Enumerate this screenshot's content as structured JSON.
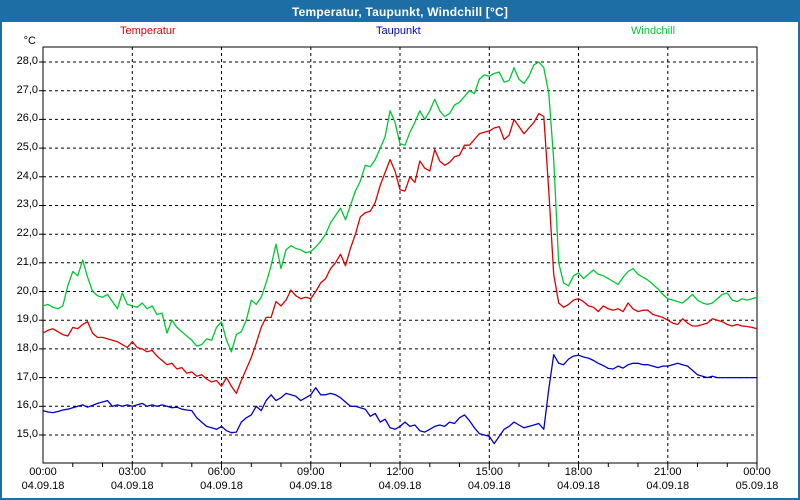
{
  "window": {
    "title": "Temperatur, Taupunkt, Windchill [°C]"
  },
  "colors": {
    "frame": "#1c6ea4",
    "titlebar_bg": "#1c6ea4",
    "titlebar_text": "#ffffff",
    "plot_background": "#ffffff",
    "plot_border": "#000000",
    "grid": "#000000",
    "temperatur": "#dd0000",
    "taupunkt": "#0000cc",
    "windchill": "#00c832"
  },
  "axes": {
    "y_unit_label": "°C",
    "y_ticks": [
      {
        "label": "28,0",
        "value": 28.0
      },
      {
        "label": "27,0",
        "value": 27.0
      },
      {
        "label": "26,0",
        "value": 26.0
      },
      {
        "label": "25,0",
        "value": 25.0
      },
      {
        "label": "24,0",
        "value": 24.0
      },
      {
        "label": "23,0",
        "value": 23.0
      },
      {
        "label": "22,0",
        "value": 22.0
      },
      {
        "label": "21,0",
        "value": 21.0
      },
      {
        "label": "20,0",
        "value": 20.0
      },
      {
        "label": "19,0",
        "value": 19.0
      },
      {
        "label": "18,0",
        "value": 18.0
      },
      {
        "label": "17,0",
        "value": 17.0
      },
      {
        "label": "16,0",
        "value": 16.0
      },
      {
        "label": "15,0",
        "value": 15.0
      }
    ],
    "x_ticks": [
      {
        "time": "00:00",
        "date": "04.09.18",
        "minutes": 0
      },
      {
        "time": "03:00",
        "date": "04.09.18",
        "minutes": 180
      },
      {
        "time": "06:00",
        "date": "04.09.18",
        "minutes": 360
      },
      {
        "time": "09:00",
        "date": "04.09.18",
        "minutes": 540
      },
      {
        "time": "12:00",
        "date": "04.09.18",
        "minutes": 720
      },
      {
        "time": "15:00",
        "date": "04.09.18",
        "minutes": 900
      },
      {
        "time": "18:00",
        "date": "04.09.18",
        "minutes": 1080
      },
      {
        "time": "21:00",
        "date": "04.09.18",
        "minutes": 1260
      },
      {
        "time": "00:00",
        "date": "05.09.18",
        "minutes": 1440
      }
    ]
  },
  "chart_data": {
    "type": "line",
    "title": "Temperatur, Taupunkt, Windchill [°C]",
    "xlabel": "",
    "ylabel": "°C",
    "ylim": [
      14.5,
      28.5
    ],
    "y_tick_step": 1.0,
    "x_range_minutes": [
      0,
      1440
    ],
    "x_tick_major_minutes": 180,
    "x_tick_minor_minutes": 60,
    "grid": "dashed",
    "legend_position": "top",
    "x_start_minutes": 0,
    "x_step_minutes": 10,
    "series": [
      {
        "name": "Temperatur",
        "color": "#dd0000",
        "values": [
          18.55,
          18.65,
          18.7,
          18.6,
          18.5,
          18.45,
          18.75,
          18.7,
          18.85,
          18.95,
          18.55,
          18.4,
          18.4,
          18.35,
          18.3,
          18.25,
          18.15,
          18.05,
          18.25,
          18.05,
          18.0,
          17.9,
          17.95,
          17.75,
          17.6,
          17.45,
          17.5,
          17.3,
          17.35,
          17.15,
          17.2,
          17.05,
          17.1,
          16.95,
          16.85,
          16.9,
          16.7,
          17.0,
          16.7,
          16.45,
          16.9,
          17.3,
          17.7,
          18.2,
          18.75,
          19.1,
          19.1,
          19.65,
          19.5,
          19.7,
          20.05,
          19.85,
          19.75,
          19.8,
          19.75,
          20.0,
          20.3,
          20.45,
          20.8,
          21.0,
          21.3,
          20.9,
          21.5,
          22.0,
          22.6,
          22.75,
          22.8,
          23.1,
          23.7,
          24.15,
          24.6,
          24.2,
          23.55,
          23.5,
          24.0,
          23.8,
          24.55,
          24.3,
          24.2,
          24.95,
          24.55,
          24.4,
          24.5,
          24.7,
          24.75,
          25.1,
          25.1,
          25.3,
          25.5,
          25.55,
          25.6,
          25.7,
          25.75,
          25.3,
          25.45,
          26.0,
          25.75,
          25.5,
          25.7,
          25.9,
          26.2,
          26.1,
          23.5,
          20.6,
          19.6,
          19.45,
          19.55,
          19.7,
          19.75,
          19.65,
          19.5,
          19.45,
          19.3,
          19.5,
          19.4,
          19.35,
          19.4,
          19.3,
          19.6,
          19.4,
          19.3,
          19.35,
          19.35,
          19.2,
          19.15,
          19.1,
          19.0,
          18.9,
          18.85,
          19.05,
          18.9,
          18.8,
          18.8,
          18.85,
          18.9,
          19.05,
          19.0,
          18.95,
          18.85,
          18.8,
          18.85,
          18.8,
          18.78,
          18.75,
          18.7
        ]
      },
      {
        "name": "Taupunkt",
        "color": "#0000cc",
        "values": [
          15.85,
          15.8,
          15.78,
          15.82,
          15.87,
          15.9,
          15.95,
          16.0,
          16.05,
          15.97,
          16.03,
          16.1,
          16.15,
          16.2,
          16.0,
          16.05,
          16.0,
          16.05,
          16.0,
          16.05,
          16.1,
          16.0,
          16.05,
          16.0,
          16.05,
          16.0,
          15.95,
          15.97,
          15.9,
          15.87,
          15.85,
          15.6,
          15.45,
          15.3,
          15.25,
          15.2,
          15.3,
          15.15,
          15.08,
          15.1,
          15.45,
          15.6,
          15.7,
          16.0,
          15.85,
          16.2,
          16.4,
          16.2,
          16.3,
          16.45,
          16.4,
          16.35,
          16.2,
          16.3,
          16.4,
          16.65,
          16.4,
          16.4,
          16.45,
          16.4,
          16.3,
          16.15,
          16.0,
          16.0,
          15.95,
          15.9,
          15.65,
          15.75,
          15.45,
          15.55,
          15.25,
          15.2,
          15.3,
          15.45,
          15.3,
          15.35,
          15.15,
          15.1,
          15.2,
          15.3,
          15.35,
          15.3,
          15.45,
          15.4,
          15.6,
          15.7,
          15.5,
          15.25,
          15.05,
          15.0,
          14.95,
          14.7,
          14.95,
          15.2,
          15.3,
          15.45,
          15.35,
          15.25,
          15.3,
          15.35,
          15.4,
          15.2,
          16.6,
          17.8,
          17.5,
          17.45,
          17.65,
          17.75,
          17.78,
          17.72,
          17.68,
          17.6,
          17.5,
          17.42,
          17.32,
          17.3,
          17.4,
          17.33,
          17.45,
          17.5,
          17.5,
          17.45,
          17.45,
          17.4,
          17.35,
          17.4,
          17.4,
          17.45,
          17.5,
          17.45,
          17.4,
          17.25,
          17.1,
          17.05,
          17.0,
          17.05,
          17.0,
          17.0,
          17.0,
          17.0,
          17.0,
          17.0,
          17.0,
          17.0,
          17.0
        ]
      },
      {
        "name": "Windchill",
        "color": "#00c832",
        "values": [
          19.5,
          19.55,
          19.45,
          19.4,
          19.5,
          20.2,
          20.7,
          20.55,
          21.1,
          20.5,
          20.0,
          19.85,
          19.8,
          19.9,
          19.65,
          19.4,
          19.95,
          19.55,
          19.5,
          19.45,
          19.6,
          19.4,
          19.5,
          19.2,
          19.25,
          18.55,
          19.0,
          18.75,
          18.6,
          18.45,
          18.3,
          18.1,
          18.15,
          18.35,
          18.3,
          18.75,
          18.95,
          18.3,
          17.9,
          18.5,
          18.6,
          19.0,
          19.7,
          19.55,
          19.8,
          20.3,
          20.9,
          21.65,
          20.8,
          21.45,
          21.6,
          21.5,
          21.45,
          21.35,
          21.4,
          21.55,
          21.75,
          22.0,
          22.4,
          22.65,
          22.9,
          22.5,
          23.0,
          23.5,
          23.85,
          24.4,
          24.35,
          24.6,
          25.0,
          25.4,
          26.3,
          25.9,
          25.15,
          25.1,
          25.55,
          25.9,
          26.3,
          26.0,
          26.3,
          26.7,
          26.3,
          26.1,
          26.2,
          26.5,
          26.6,
          26.8,
          27.0,
          26.9,
          27.4,
          27.55,
          27.5,
          27.6,
          27.65,
          27.3,
          27.35,
          27.8,
          27.4,
          27.25,
          27.5,
          27.9,
          28.0,
          27.8,
          26.9,
          24.6,
          21.0,
          20.3,
          20.2,
          20.55,
          20.65,
          20.45,
          20.6,
          20.75,
          20.6,
          20.55,
          20.45,
          20.35,
          20.25,
          20.5,
          20.7,
          20.8,
          20.6,
          20.5,
          20.4,
          20.25,
          20.1,
          19.9,
          19.75,
          19.7,
          19.65,
          19.6,
          19.75,
          19.9,
          19.7,
          19.6,
          19.55,
          19.6,
          19.75,
          19.9,
          19.95,
          19.7,
          19.65,
          19.75,
          19.7,
          19.75,
          19.8
        ]
      }
    ]
  }
}
